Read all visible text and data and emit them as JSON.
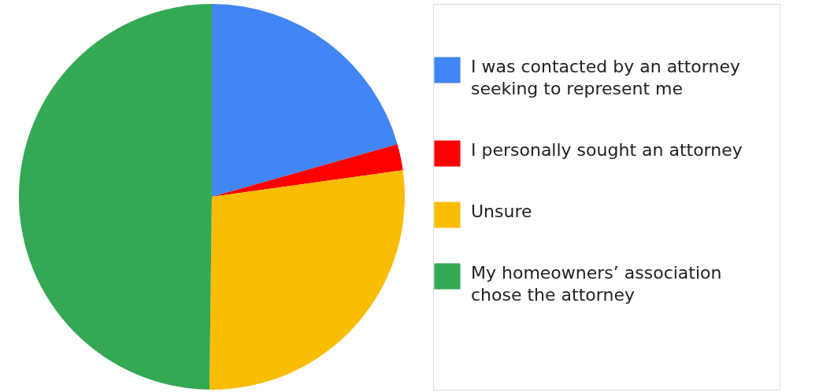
{
  "chart_data": {
    "type": "pie",
    "categories": [
      "I was contacted by an attorney seeking to represent me",
      "I personally sought an attorney",
      "Unsure",
      "My homeowners’ association chose the attorney"
    ],
    "values": [
      20.6,
      2.2,
      27.4,
      49.8
    ],
    "colors": [
      "#4285f4",
      "#ff0000",
      "#fbbc04",
      "#34a853"
    ],
    "legend": "right"
  }
}
